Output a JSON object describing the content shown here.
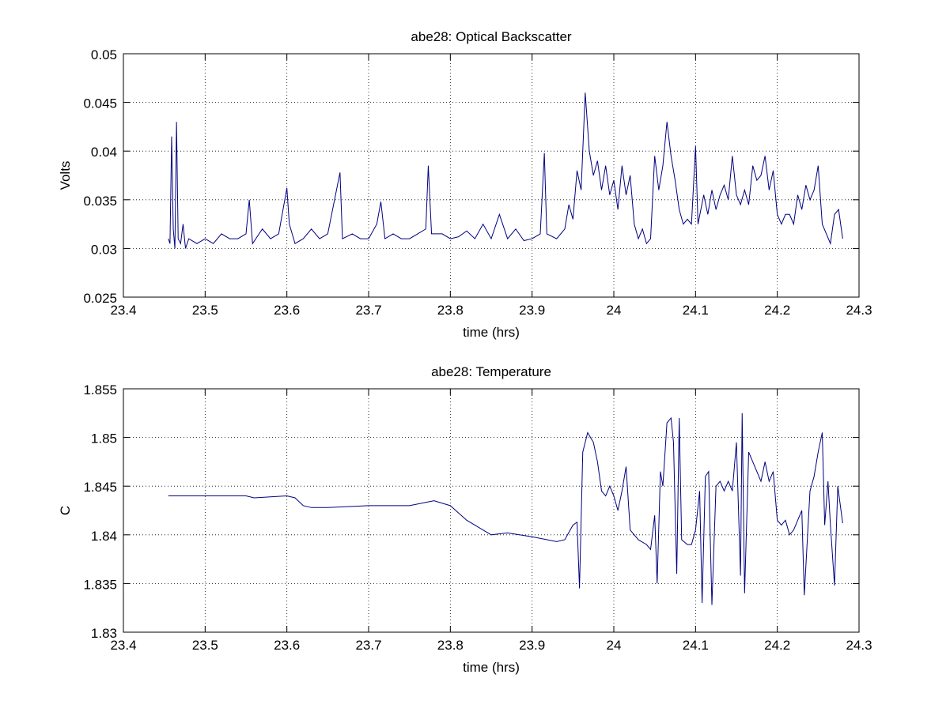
{
  "chart_data": [
    {
      "type": "line",
      "title": "abe28: Optical Backscatter",
      "xlabel": "time (hrs)",
      "ylabel": "Volts",
      "xlim": [
        23.4,
        24.3
      ],
      "xticks": [
        23.4,
        23.5,
        23.6,
        23.7,
        23.8,
        23.9,
        24,
        24.1,
        24.2,
        24.3
      ],
      "ylim": [
        0.025,
        0.05
      ],
      "yticks": [
        0.025,
        0.03,
        0.035,
        0.04,
        0.045,
        0.05
      ],
      "grid": true,
      "series": [
        {
          "color": "#000080",
          "x": [
            23.455,
            23.457,
            23.459,
            23.461,
            23.463,
            23.465,
            23.467,
            23.47,
            23.473,
            23.476,
            23.48,
            23.49,
            23.5,
            23.51,
            23.52,
            23.53,
            23.54,
            23.55,
            23.554,
            23.558,
            23.57,
            23.58,
            23.59,
            23.6,
            23.603,
            23.61,
            23.62,
            23.63,
            23.64,
            23.65,
            23.665,
            23.668,
            23.68,
            23.69,
            23.7,
            23.71,
            23.715,
            23.72,
            23.73,
            23.74,
            23.75,
            23.76,
            23.77,
            23.773,
            23.777,
            23.79,
            23.8,
            23.81,
            23.82,
            23.83,
            23.84,
            23.85,
            23.86,
            23.87,
            23.88,
            23.89,
            23.9,
            23.91,
            23.915,
            23.918,
            23.93,
            23.94,
            23.945,
            23.95,
            23.955,
            23.96,
            23.965,
            23.97,
            23.975,
            23.98,
            23.985,
            23.99,
            23.995,
            24.0,
            24.005,
            24.01,
            24.015,
            24.02,
            24.025,
            24.03,
            24.035,
            24.04,
            24.045,
            24.05,
            24.055,
            24.06,
            24.065,
            24.07,
            24.075,
            24.08,
            24.085,
            24.09,
            24.095,
            24.1,
            24.103,
            24.11,
            24.115,
            24.12,
            24.125,
            24.13,
            24.135,
            24.14,
            24.145,
            24.15,
            24.155,
            24.16,
            24.165,
            24.17,
            24.175,
            24.18,
            24.185,
            24.19,
            24.195,
            24.2,
            24.205,
            24.21,
            24.215,
            24.22,
            24.225,
            24.23,
            24.235,
            24.24,
            24.245,
            24.25,
            24.255,
            24.26,
            24.265,
            24.27,
            24.275,
            24.28
          ],
          "values": [
            0.031,
            0.0305,
            0.0415,
            0.032,
            0.03,
            0.043,
            0.031,
            0.0305,
            0.0325,
            0.03,
            0.031,
            0.0305,
            0.031,
            0.0305,
            0.0315,
            0.031,
            0.031,
            0.0315,
            0.035,
            0.0305,
            0.032,
            0.031,
            0.0315,
            0.0362,
            0.0325,
            0.0305,
            0.031,
            0.032,
            0.031,
            0.0315,
            0.0378,
            0.031,
            0.0315,
            0.031,
            0.031,
            0.0325,
            0.0348,
            0.031,
            0.0315,
            0.031,
            0.031,
            0.0315,
            0.032,
            0.0385,
            0.0315,
            0.0315,
            0.031,
            0.0312,
            0.0318,
            0.031,
            0.0325,
            0.031,
            0.0335,
            0.031,
            0.032,
            0.0308,
            0.031,
            0.0315,
            0.0398,
            0.0315,
            0.031,
            0.032,
            0.0345,
            0.033,
            0.038,
            0.036,
            0.046,
            0.04,
            0.0375,
            0.039,
            0.036,
            0.0385,
            0.0355,
            0.037,
            0.034,
            0.0385,
            0.0355,
            0.0375,
            0.0325,
            0.031,
            0.032,
            0.0305,
            0.031,
            0.0395,
            0.036,
            0.0385,
            0.043,
            0.0395,
            0.037,
            0.034,
            0.0325,
            0.033,
            0.0325,
            0.0405,
            0.0325,
            0.0355,
            0.0335,
            0.036,
            0.034,
            0.0355,
            0.0365,
            0.035,
            0.0395,
            0.0355,
            0.0345,
            0.036,
            0.0345,
            0.0385,
            0.037,
            0.0375,
            0.0395,
            0.036,
            0.038,
            0.0335,
            0.0325,
            0.0335,
            0.0335,
            0.0325,
            0.0355,
            0.034,
            0.0365,
            0.035,
            0.036,
            0.0385,
            0.0325,
            0.0315,
            0.0305,
            0.0335,
            0.034,
            0.031
          ]
        }
      ]
    },
    {
      "type": "line",
      "title": "abe28: Temperature",
      "xlabel": "time (hrs)",
      "ylabel": "C",
      "xlim": [
        23.4,
        24.3
      ],
      "xticks": [
        23.4,
        23.5,
        23.6,
        23.7,
        23.8,
        23.9,
        24,
        24.1,
        24.2,
        24.3
      ],
      "ylim": [
        1.83,
        1.855
      ],
      "yticks": [
        1.83,
        1.835,
        1.84,
        1.845,
        1.85,
        1.855
      ],
      "grid": true,
      "series": [
        {
          "color": "#000080",
          "x": [
            23.455,
            23.5,
            23.55,
            23.56,
            23.6,
            23.61,
            23.62,
            23.63,
            23.65,
            23.7,
            23.75,
            23.78,
            23.8,
            23.82,
            23.84,
            23.85,
            23.87,
            23.9,
            23.93,
            23.94,
            23.95,
            23.955,
            23.958,
            23.962,
            23.968,
            23.975,
            23.98,
            23.985,
            23.99,
            23.995,
            24.0,
            24.005,
            24.01,
            24.015,
            24.02,
            24.03,
            24.04,
            24.045,
            24.05,
            24.053,
            24.057,
            24.06,
            24.065,
            24.07,
            24.073,
            24.077,
            24.08,
            24.083,
            24.09,
            24.095,
            24.1,
            24.105,
            24.108,
            24.112,
            24.116,
            24.12,
            24.125,
            24.13,
            24.135,
            24.14,
            24.145,
            24.15,
            24.155,
            24.157,
            24.16,
            24.165,
            24.17,
            24.175,
            24.18,
            24.185,
            24.19,
            24.195,
            24.2,
            24.205,
            24.21,
            24.215,
            24.22,
            24.225,
            24.23,
            24.233,
            24.24,
            24.245,
            24.25,
            24.255,
            24.258,
            24.262,
            24.265,
            24.27,
            24.274,
            24.28
          ],
          "values": [
            1.844,
            1.844,
            1.844,
            1.8438,
            1.844,
            1.8438,
            1.843,
            1.8428,
            1.8428,
            1.843,
            1.843,
            1.8435,
            1.843,
            1.8415,
            1.8405,
            1.84,
            1.8402,
            1.8398,
            1.8393,
            1.8395,
            1.841,
            1.8413,
            1.8345,
            1.8485,
            1.8505,
            1.8495,
            1.8475,
            1.8445,
            1.844,
            1.845,
            1.844,
            1.8425,
            1.8445,
            1.847,
            1.8405,
            1.8395,
            1.839,
            1.8385,
            1.842,
            1.835,
            1.8465,
            1.845,
            1.8515,
            1.852,
            1.8495,
            1.836,
            1.852,
            1.8395,
            1.839,
            1.839,
            1.8405,
            1.8445,
            1.833,
            1.846,
            1.8465,
            1.8328,
            1.845,
            1.8455,
            1.8445,
            1.8455,
            1.8445,
            1.8495,
            1.8358,
            1.8525,
            1.834,
            1.8485,
            1.8475,
            1.8465,
            1.8455,
            1.8475,
            1.8455,
            1.8465,
            1.8415,
            1.841,
            1.8415,
            1.84,
            1.8405,
            1.8415,
            1.8425,
            1.8338,
            1.8445,
            1.846,
            1.8485,
            1.8505,
            1.841,
            1.8455,
            1.841,
            1.8348,
            1.845,
            1.8412
          ]
        }
      ]
    }
  ]
}
